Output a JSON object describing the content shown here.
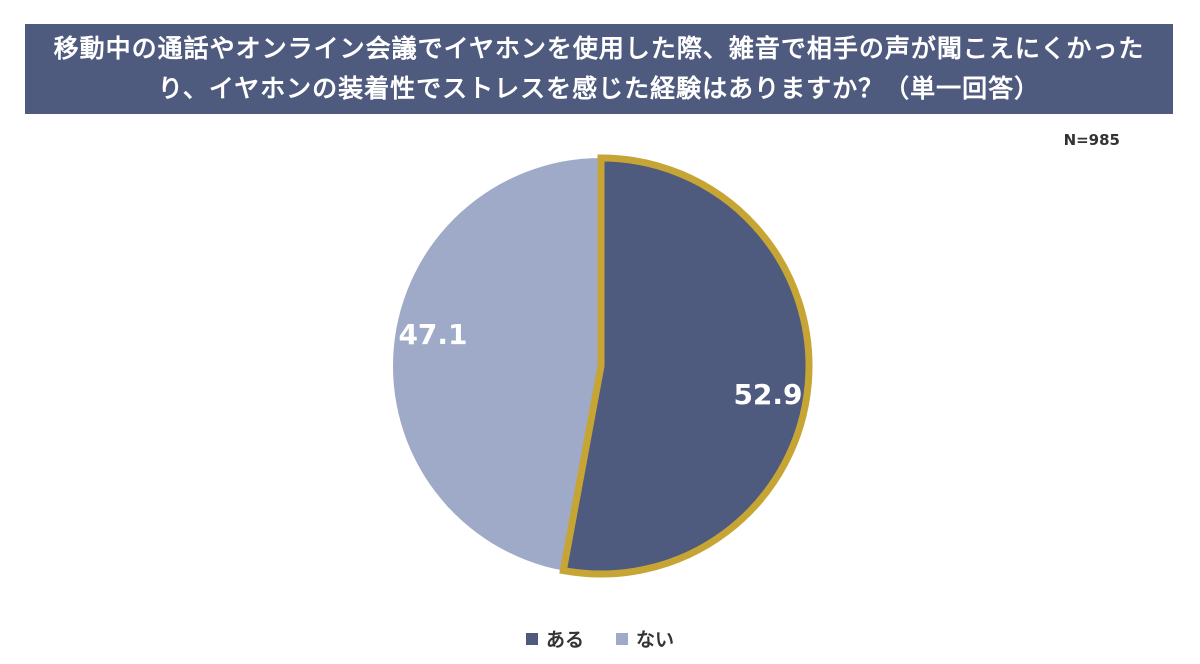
{
  "title": "移動中の通話やオンライン会議でイヤホンを使用した際、雑音で相手の声が聞こえにくかったり、イヤホンの装着性でストレスを感じた経験はありますか？（単一回答）",
  "sample_size": "N=985",
  "colors": {
    "header_bg": "#4e5a7e",
    "slice_aru": "#4e5a7e",
    "slice_nai": "#9eaac8",
    "highlight_border": "#c6a535"
  },
  "chart_data": {
    "type": "pie",
    "title": "移動中の通話やオンライン会議でイヤホンを使用した際、雑音で相手の声が聞こえにくかったり、イヤホンの装着性でストレスを感じた経験はありますか？（単一回答）",
    "categories": [
      "ある",
      "ない"
    ],
    "values": [
      52.9,
      47.1
    ],
    "data_labels": [
      "52.9",
      "47.1"
    ],
    "highlighted": "ある",
    "legend_position": "bottom"
  }
}
